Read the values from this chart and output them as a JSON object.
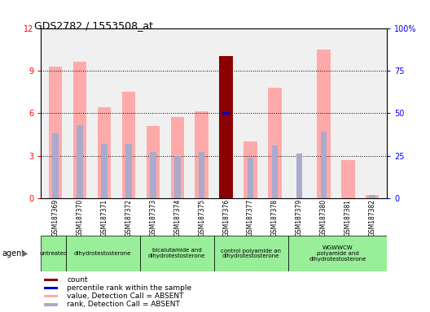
{
  "title": "GDS2782 / 1553508_at",
  "samples": [
    "GSM187369",
    "GSM187370",
    "GSM187371",
    "GSM187372",
    "GSM187373",
    "GSM187374",
    "GSM187375",
    "GSM187376",
    "GSM187377",
    "GSM187378",
    "GSM187379",
    "GSM187380",
    "GSM187381",
    "GSM187382"
  ],
  "value_absent": [
    9.3,
    9.6,
    6.4,
    7.5,
    5.1,
    5.7,
    6.1,
    0.0,
    4.0,
    7.8,
    0.0,
    10.5,
    2.7,
    0.2
  ],
  "rank_absent": [
    38,
    43,
    32,
    32,
    27,
    25,
    27,
    0,
    24,
    31,
    26,
    39,
    0,
    2
  ],
  "count_bar_val": 10.0,
  "count_bar_idx": 7,
  "percentile_rank_val": 50,
  "percentile_rank_idx": 7,
  "ylim_left": [
    0,
    12
  ],
  "ylim_right": [
    0,
    100
  ],
  "yticks_left": [
    0,
    3,
    6,
    9,
    12
  ],
  "yticks_right": [
    0,
    25,
    50,
    75,
    100
  ],
  "yticklabels_right": [
    "0",
    "25",
    "50",
    "75",
    "100%"
  ],
  "group_info": [
    {
      "label": "untreated",
      "count": 1
    },
    {
      "label": "dihydrotestosterone",
      "count": 3
    },
    {
      "label": "bicalutamide and\ndihydrotestosterone",
      "count": 3
    },
    {
      "label": "control polyamide an\ndihydrotestosterone",
      "count": 3
    },
    {
      "label": "WGWWCW\npolyamide and\ndihydrotestosterone",
      "count": 4
    }
  ],
  "color_value_absent": "#ffaaaa",
  "color_rank_absent": "#aaaacc",
  "color_count": "#8b0000",
  "color_percentile": "#0000cc",
  "bar_width": 0.55,
  "rank_bar_width": 0.25,
  "color_plot_bg": "#f0f0f0",
  "color_xtick_bg": "#c8c8c8",
  "color_agent_bg": "#c8c8c8",
  "color_group_green": "#99ee99",
  "legend_items": [
    {
      "color": "#8b0000",
      "label": "count"
    },
    {
      "color": "#0000cc",
      "label": "percentile rank within the sample"
    },
    {
      "color": "#ffaaaa",
      "label": "value, Detection Call = ABSENT"
    },
    {
      "color": "#aaaacc",
      "label": "rank, Detection Call = ABSENT"
    }
  ]
}
